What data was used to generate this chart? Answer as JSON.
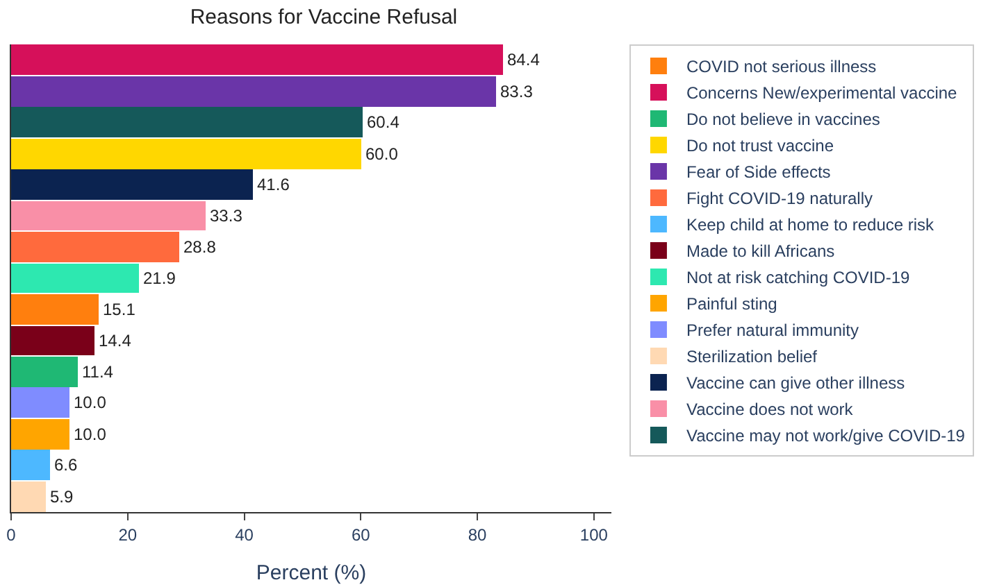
{
  "chart_data": {
    "type": "bar",
    "orientation": "horizontal",
    "title": "Reasons for Vaccine Refusal",
    "xlabel": "Percent (%)",
    "categories": [
      null,
      null,
      null,
      null,
      null,
      null,
      null,
      null,
      null,
      null,
      null,
      null,
      null,
      null,
      null
    ],
    "series": [
      {
        "name": "COVID not serious illness",
        "color": "#ff7f0e",
        "values": [
          null,
          null,
          null,
          null,
          null,
          null,
          null,
          null,
          15.1,
          null,
          null,
          null,
          null,
          null,
          null
        ],
        "value_labels": [
          null,
          null,
          null,
          null,
          null,
          null,
          null,
          null,
          "15.1",
          null,
          null,
          null,
          null,
          null,
          null
        ]
      },
      {
        "name": "Concerns New/experimental vaccine",
        "color": "#d6105a",
        "values": [
          84.4,
          null,
          null,
          null,
          null,
          null,
          null,
          null,
          null,
          null,
          null,
          null,
          null,
          null,
          null
        ],
        "value_labels": [
          "84.4",
          null,
          null,
          null,
          null,
          null,
          null,
          null,
          null,
          null,
          null,
          null,
          null,
          null,
          null
        ]
      },
      {
        "name": "Do not believe in vaccines",
        "color": "#1fb874",
        "values": [
          null,
          null,
          null,
          null,
          null,
          null,
          null,
          null,
          null,
          null,
          11.4,
          null,
          null,
          null,
          null
        ],
        "value_labels": [
          null,
          null,
          null,
          null,
          null,
          null,
          null,
          null,
          null,
          null,
          "11.4",
          null,
          null,
          null,
          null
        ]
      },
      {
        "name": "Do not trust vaccine",
        "color": "#ffd700",
        "values": [
          null,
          null,
          null,
          60.0,
          null,
          null,
          null,
          null,
          null,
          null,
          null,
          null,
          null,
          null,
          null
        ],
        "value_labels": [
          null,
          null,
          null,
          "60.0",
          null,
          null,
          null,
          null,
          null,
          null,
          null,
          null,
          null,
          null,
          null
        ]
      },
      {
        "name": "Fear of Side effects",
        "color": "#6a35a8",
        "values": [
          null,
          83.3,
          null,
          null,
          null,
          null,
          null,
          null,
          null,
          null,
          null,
          null,
          null,
          null,
          null
        ],
        "value_labels": [
          null,
          "83.3",
          null,
          null,
          null,
          null,
          null,
          null,
          null,
          null,
          null,
          null,
          null,
          null,
          null
        ]
      },
      {
        "name": "Fight COVID-19 naturally",
        "color": "#ff6a3d",
        "values": [
          null,
          null,
          null,
          null,
          null,
          null,
          28.8,
          null,
          null,
          null,
          null,
          null,
          null,
          null,
          null
        ],
        "value_labels": [
          null,
          null,
          null,
          null,
          null,
          null,
          "28.8",
          null,
          null,
          null,
          null,
          null,
          null,
          null,
          null
        ]
      },
      {
        "name": "Keep child at home to reduce risk",
        "color": "#4db8ff",
        "values": [
          null,
          null,
          null,
          null,
          null,
          null,
          null,
          null,
          null,
          null,
          null,
          null,
          null,
          6.6,
          null
        ],
        "value_labels": [
          null,
          null,
          null,
          null,
          null,
          null,
          null,
          null,
          null,
          null,
          null,
          null,
          null,
          "6.6",
          null
        ]
      },
      {
        "name": "Made to kill Africans",
        "color": "#7a0019",
        "values": [
          null,
          null,
          null,
          null,
          null,
          null,
          null,
          null,
          null,
          14.4,
          null,
          null,
          null,
          null,
          null
        ],
        "value_labels": [
          null,
          null,
          null,
          null,
          null,
          null,
          null,
          null,
          null,
          "14.4",
          null,
          null,
          null,
          null,
          null
        ]
      },
      {
        "name": "Not at risk catching COVID-19",
        "color": "#2de8b0",
        "values": [
          null,
          null,
          null,
          null,
          null,
          null,
          null,
          21.9,
          null,
          null,
          null,
          null,
          null,
          null,
          null
        ],
        "value_labels": [
          null,
          null,
          null,
          null,
          null,
          null,
          null,
          "21.9",
          null,
          null,
          null,
          null,
          null,
          null,
          null
        ]
      },
      {
        "name": "Painful sting",
        "color": "#ffa500",
        "values": [
          null,
          null,
          null,
          null,
          null,
          null,
          null,
          null,
          null,
          null,
          null,
          null,
          10.0,
          null,
          null
        ],
        "value_labels": [
          null,
          null,
          null,
          null,
          null,
          null,
          null,
          null,
          null,
          null,
          null,
          null,
          "10.0",
          null,
          null
        ]
      },
      {
        "name": "Prefer natural immunity",
        "color": "#7f8cff",
        "values": [
          null,
          null,
          null,
          null,
          null,
          null,
          null,
          null,
          null,
          null,
          null,
          10.0,
          null,
          null,
          null
        ],
        "value_labels": [
          null,
          null,
          null,
          null,
          null,
          null,
          null,
          null,
          null,
          null,
          null,
          "10.0",
          null,
          null,
          null
        ]
      },
      {
        "name": "Sterilization belief",
        "color": "#ffd9b3",
        "values": [
          null,
          null,
          null,
          null,
          null,
          null,
          null,
          null,
          null,
          null,
          null,
          null,
          null,
          null,
          5.9
        ],
        "value_labels": [
          null,
          null,
          null,
          null,
          null,
          null,
          null,
          null,
          null,
          null,
          null,
          null,
          null,
          null,
          "5.9"
        ]
      },
      {
        "name": "Vaccine can give other illness",
        "color": "#0b2350",
        "values": [
          null,
          null,
          null,
          null,
          41.6,
          null,
          null,
          null,
          null,
          null,
          null,
          null,
          null,
          null,
          null
        ],
        "value_labels": [
          null,
          null,
          null,
          null,
          "41.6",
          null,
          null,
          null,
          null,
          null,
          null,
          null,
          null,
          null,
          null
        ]
      },
      {
        "name": "Vaccine does not work",
        "color": "#f98fa7",
        "values": [
          null,
          null,
          null,
          null,
          null,
          33.3,
          null,
          null,
          null,
          null,
          null,
          null,
          null,
          null,
          null
        ],
        "value_labels": [
          null,
          null,
          null,
          null,
          null,
          "33.3",
          null,
          null,
          null,
          null,
          null,
          null,
          null,
          null,
          null
        ]
      },
      {
        "name": "Vaccine may not work/give COVID-19",
        "color": "#15595a",
        "values": [
          null,
          null,
          60.4,
          null,
          null,
          null,
          null,
          null,
          null,
          null,
          null,
          null,
          null,
          null,
          null
        ],
        "value_labels": [
          null,
          null,
          "60.4",
          null,
          null,
          null,
          null,
          null,
          null,
          null,
          null,
          null,
          null,
          null,
          null
        ]
      }
    ],
    "xlim": [
      0,
      103
    ],
    "xticks": [
      0,
      20,
      40,
      60,
      80,
      100
    ],
    "tick_labels": "x",
    "legend": "right"
  }
}
